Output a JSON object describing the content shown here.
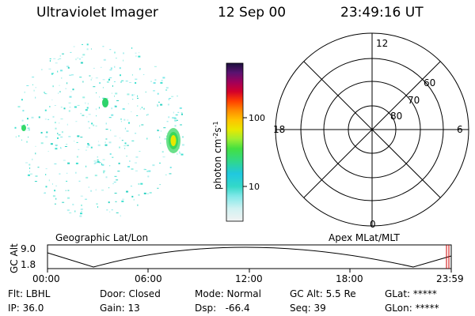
{
  "header": {
    "instrument": "Ultraviolet Imager",
    "date": "12 Sep 00",
    "time": "23:49:16 UT"
  },
  "colorbar": {
    "unit_label": "photon cm",
    "unit_exp1": "-2",
    "unit_s": "s",
    "unit_exp2": "-1",
    "ticks": [
      "100",
      "10"
    ]
  },
  "polar_grid": {
    "mlt_labels": {
      "top": "12",
      "left": "18",
      "right": "6",
      "bottom": "0"
    },
    "lat_labels": [
      "60",
      "70",
      "80"
    ]
  },
  "timeline": {
    "left_label": "Geographic Lat/Lon",
    "right_label": "Apex MLat/MLT",
    "axis_title": "GC Alt",
    "y_ticks": [
      "9.0",
      "1.8"
    ],
    "x_ticks": [
      "00:00",
      "06:00",
      "12:00",
      "18:00",
      "23:59"
    ]
  },
  "status": {
    "row1": [
      {
        "label": "Flt: LBHL"
      },
      {
        "label": "Door: Closed"
      },
      {
        "label": "Mode: Normal"
      },
      {
        "label": "GC Alt: 5.5 Re"
      },
      {
        "label": "GLat: *****"
      }
    ],
    "row2": [
      {
        "label": "IP: 36.0"
      },
      {
        "label": "Gain: 13"
      },
      {
        "label": "Dsp:   -66.4"
      },
      {
        "label": "Seq: 39"
      },
      {
        "label": "GLon: *****"
      }
    ]
  },
  "colors": {
    "grid": "#000000",
    "marker": "#cc0000",
    "noise": "#40e0d0",
    "spot_core": "#e8e800"
  }
}
